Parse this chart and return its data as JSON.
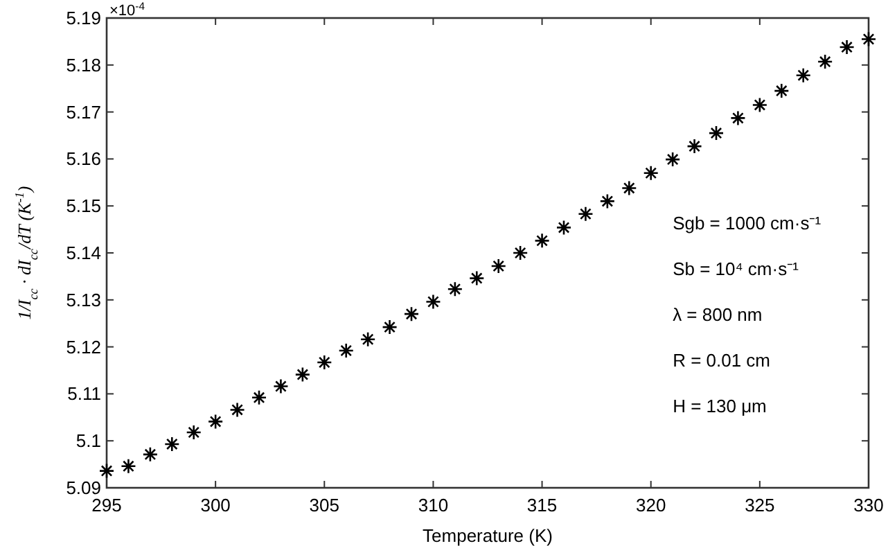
{
  "chart_data": {
    "type": "scatter",
    "xlabel": "Temperature (K)",
    "ylabel": "1/I$_{cc}$ · dI$_{cc}$/dT (K$^{-1}$)",
    "annotations": [
      "×10$^{-4}$",
      "Sgb = 1000 cm·s⁻¹",
      "Sb = 10⁴ cm·s⁻¹",
      "λ = 800 nm",
      "R = 0.01 cm",
      "H = 130 μm"
    ],
    "x": [
      295,
      296,
      297,
      298,
      299,
      300,
      301,
      302,
      303,
      304,
      305,
      306,
      307,
      308,
      309,
      310,
      311,
      312,
      313,
      314,
      315,
      316,
      317,
      318,
      319,
      320,
      321,
      322,
      323,
      324,
      325,
      326,
      327,
      328,
      329,
      330
    ],
    "series": [
      {
        "color": "#000000",
        "values": [
          5.0936,
          5.0946,
          5.0971,
          5.0993,
          5.1018,
          5.1041,
          5.1066,
          5.1092,
          5.1116,
          5.1141,
          5.1167,
          5.1192,
          5.1216,
          5.1242,
          5.127,
          5.1296,
          5.1323,
          5.1346,
          5.1372,
          5.14,
          5.1426,
          5.1454,
          5.1483,
          5.151,
          5.1538,
          5.157,
          5.1599,
          5.1627,
          5.1655,
          5.1687,
          5.1715,
          5.1745,
          5.1778,
          5.1807,
          5.1838,
          5.1855
        ]
      }
    ],
    "xlim": [
      295,
      330
    ],
    "xticks": [
      295,
      300,
      305,
      310,
      315,
      320,
      325,
      330
    ],
    "ylim": [
      5.09,
      5.19
    ],
    "yticks": [
      5.09,
      5.1,
      5.11,
      5.12,
      5.13,
      5.14,
      5.15,
      5.16,
      5.17,
      5.18,
      5.19
    ],
    "grid": false,
    "marker": "cross"
  }
}
